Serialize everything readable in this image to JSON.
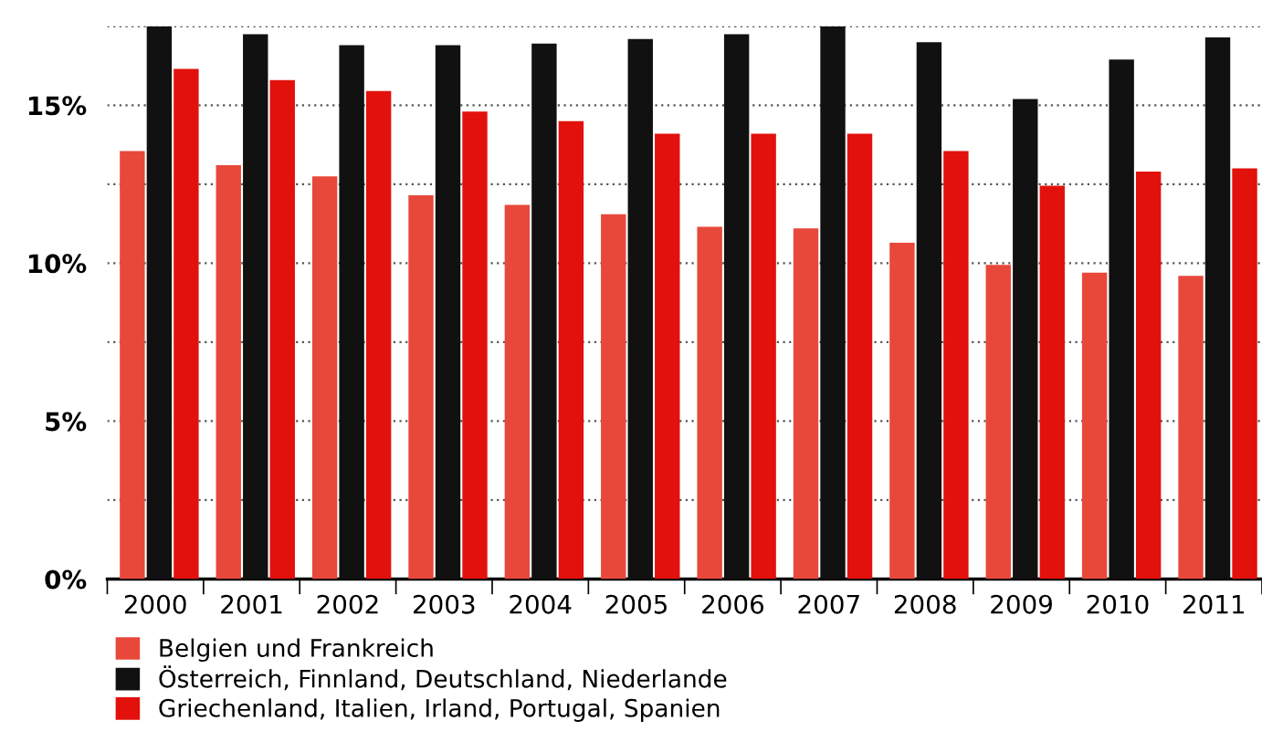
{
  "chart_data": {
    "type": "bar",
    "categories": [
      "2000",
      "2001",
      "2002",
      "2003",
      "2004",
      "2005",
      "2006",
      "2007",
      "2008",
      "2009",
      "2010",
      "2011"
    ],
    "series": [
      {
        "name": "Belgien und Frankreich",
        "color": "#e8483a",
        "values": [
          13.55,
          13.1,
          12.75,
          12.15,
          11.85,
          11.55,
          11.15,
          11.1,
          10.65,
          9.95,
          9.7,
          9.6
        ]
      },
      {
        "name": "Österreich, Finnland, Deutschland, Niederlande",
        "color": "#111111",
        "values": [
          17.5,
          17.25,
          16.9,
          16.9,
          16.95,
          17.1,
          17.25,
          17.5,
          17.0,
          15.2,
          16.45,
          17.15
        ]
      },
      {
        "name": "Griechenland, Italien, Irland, Portugal, Spanien",
        "color": "#e2110c",
        "values": [
          16.15,
          15.8,
          15.45,
          14.8,
          14.5,
          14.1,
          14.1,
          14.1,
          13.55,
          12.45,
          12.9,
          13.0
        ]
      }
    ],
    "ylim": [
      0,
      17.5
    ],
    "yticks": [
      {
        "value": 0,
        "label": "0%"
      },
      {
        "value": 2.5,
        "label": null
      },
      {
        "value": 5,
        "label": "5%"
      },
      {
        "value": 7.5,
        "label": null
      },
      {
        "value": 10,
        "label": "10%"
      },
      {
        "value": 12.5,
        "label": null
      },
      {
        "value": 15,
        "label": "15%"
      },
      {
        "value": 17.5,
        "label": null
      }
    ],
    "grid": "y",
    "legend": "bottom"
  }
}
